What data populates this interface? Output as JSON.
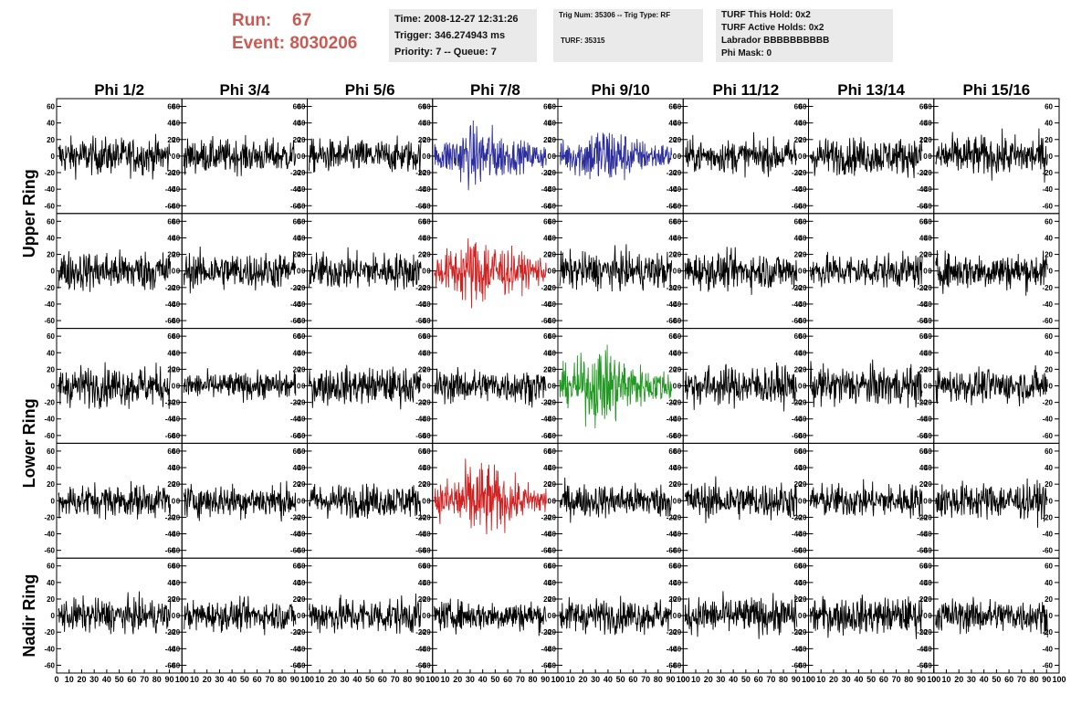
{
  "header": {
    "run_label": "Run:",
    "run_value": "67",
    "event_label": "Event:",
    "event_value": "8030206",
    "time": "Time: 2008-12-27 12:31:26",
    "trigger": "Trigger: 346.274943 ms",
    "priority": "Priority: 7 -- Queue: 7",
    "trig_num": "Trig Num: 35306 -- Trig Type: RF",
    "turf": "TURF: 35315",
    "turf_hold": "TURF This Hold: 0x2",
    "turf_active": "TURF Active Holds: 0x2",
    "labrador": "Labrador BBBBBBBBBB",
    "phi_mask": "Phi Mask: 0"
  },
  "colors": {
    "background": "#ffffff",
    "run_text": "#cc5a52",
    "info_box": "#eaeaea",
    "normal_trace": "#000000",
    "blue_trace": "#2b2d9c",
    "red_trace": "#d02020",
    "green_trace": "#229922"
  },
  "chart_data": {
    "type": "line",
    "title": "",
    "columns": [
      "Phi 1/2",
      "Phi 3/4",
      "Phi 5/6",
      "Phi 7/8",
      "Phi 9/10",
      "Phi 11/12",
      "Phi 13/14",
      "Phi 15/16"
    ],
    "ring_labels": [
      "Upper Ring",
      "Lower Ring",
      "Nadir Ring"
    ],
    "ylim": [
      -65,
      65
    ],
    "yticks": [
      -60,
      -40,
      -20,
      0,
      20,
      40,
      60
    ],
    "xlim": [
      0,
      100
    ],
    "xticks": [
      0,
      10,
      20,
      30,
      40,
      50,
      60,
      70,
      80,
      90,
      100
    ],
    "grid": false,
    "samples_per_trace": 260,
    "rows": [
      {
        "amps": [
          11,
          10,
          10,
          13,
          13,
          10,
          11,
          12
        ],
        "colors": [
          "normal",
          "normal",
          "normal",
          "blue",
          "blue",
          "normal",
          "normal",
          "normal"
        ]
      },
      {
        "amps": [
          12,
          11,
          11,
          15,
          11,
          11,
          10,
          11
        ],
        "colors": [
          "normal",
          "normal",
          "normal",
          "red",
          "normal",
          "normal",
          "normal",
          "normal"
        ]
      },
      {
        "amps": [
          12,
          8,
          11,
          10,
          16,
          12,
          12,
          10
        ],
        "colors": [
          "normal",
          "normal",
          "normal",
          "normal",
          "green",
          "normal",
          "normal",
          "normal"
        ]
      },
      {
        "amps": [
          10,
          10,
          10,
          16,
          10,
          11,
          10,
          11
        ],
        "colors": [
          "normal",
          "normal",
          "normal",
          "red",
          "normal",
          "normal",
          "normal",
          "normal"
        ]
      },
      {
        "amps": [
          10,
          9,
          11,
          9,
          10,
          11,
          11,
          10
        ],
        "colors": [
          "normal",
          "normal",
          "normal",
          "normal",
          "normal",
          "normal",
          "normal",
          "normal"
        ]
      }
    ]
  }
}
